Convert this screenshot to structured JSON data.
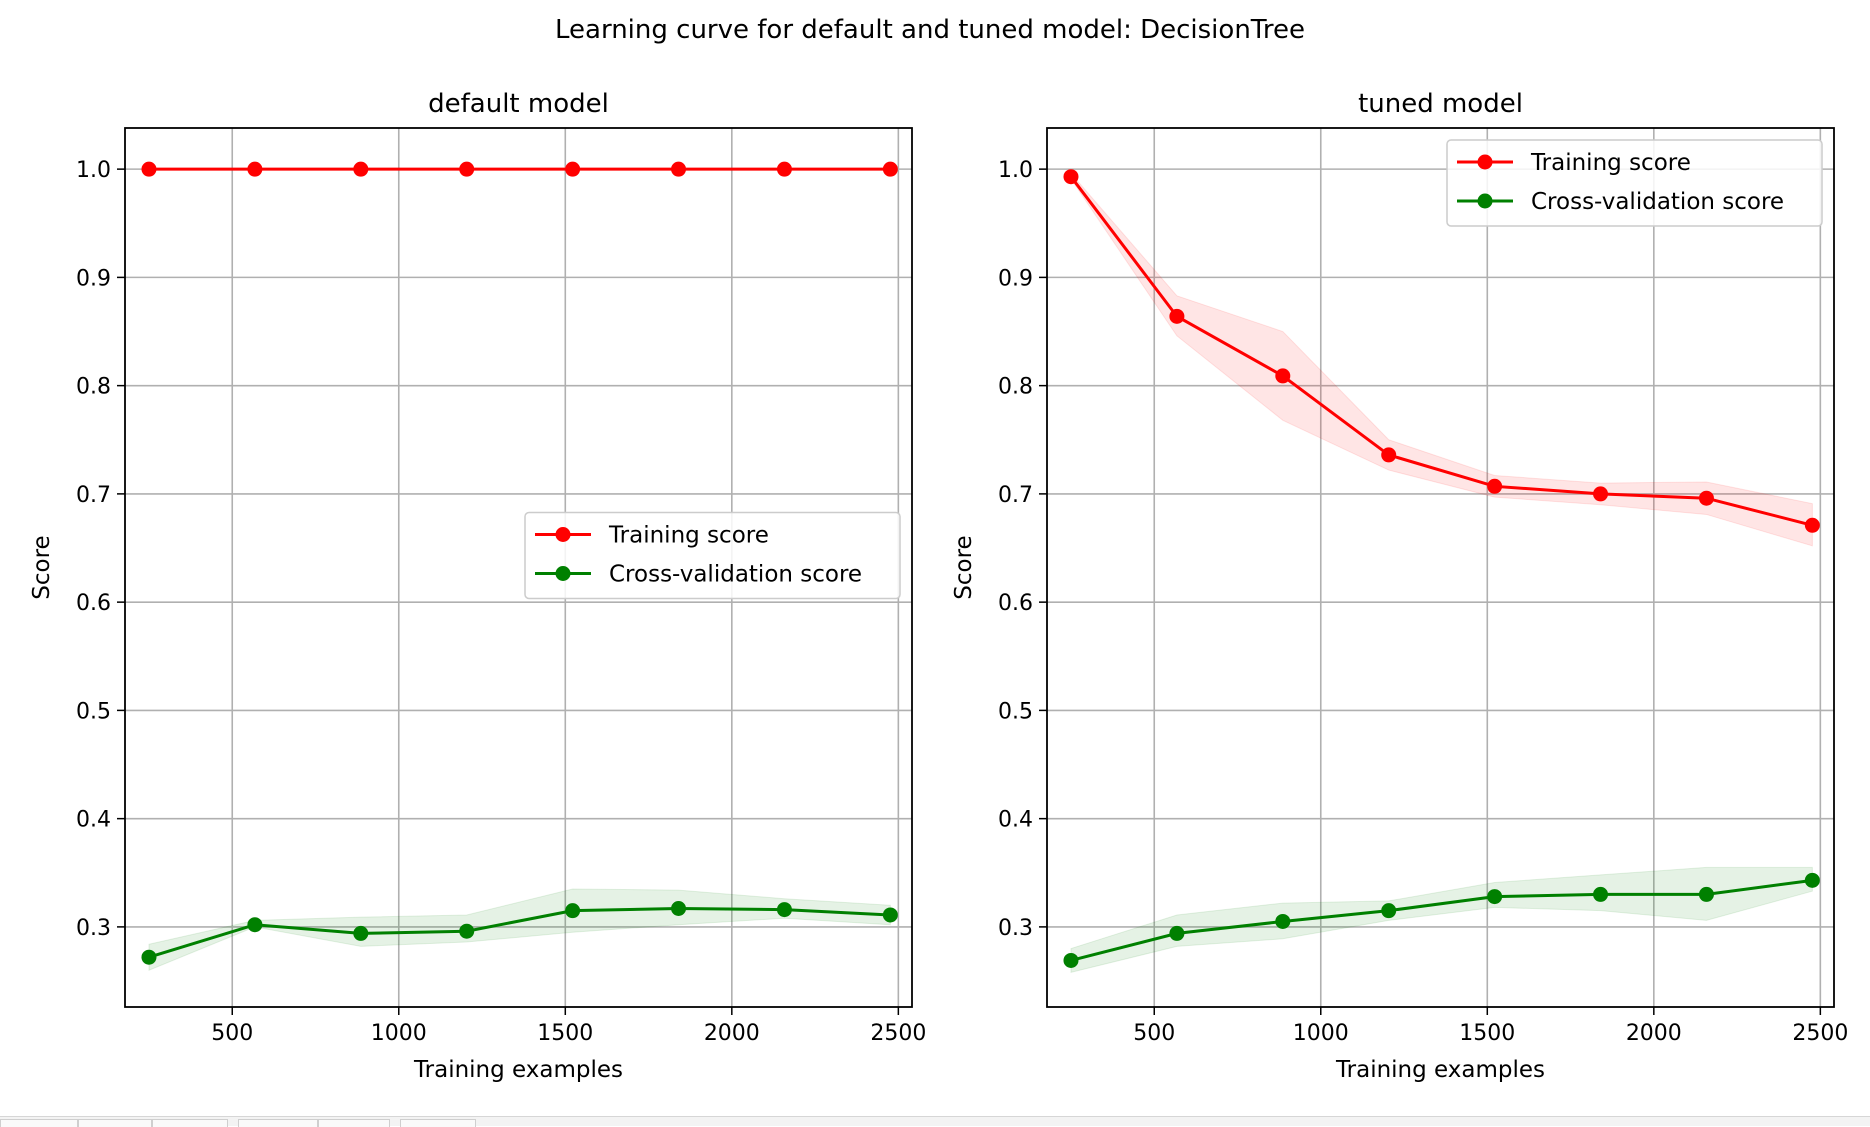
{
  "figure": {
    "suptitle": "Learning curve for default and tuned model: DecisionTree",
    "training_color": "#ff0000",
    "cv_color": "#008000",
    "grid_color": "#b0b0b0"
  },
  "chart_data": [
    {
      "type": "line",
      "title": "default model",
      "xlabel": "Training examples",
      "ylabel": "Score",
      "xlim": [
        178,
        2541
      ],
      "ylim": [
        0.226,
        1.038
      ],
      "xticks": [
        500,
        1000,
        1500,
        2000,
        2500
      ],
      "xtick_labels": [
        "500",
        "1000",
        "1500",
        "2000",
        "2500"
      ],
      "yticks": [
        0.3,
        0.4,
        0.5,
        0.6,
        0.7,
        0.8,
        0.9,
        1.0
      ],
      "ytick_labels": [
        "0.3",
        "0.4",
        "0.5",
        "0.6",
        "0.7",
        "0.8",
        "0.9",
        "1.0"
      ],
      "grid": true,
      "legend": "center-right",
      "x": [
        250,
        568,
        886,
        1204,
        1522,
        1840,
        2158,
        2476
      ],
      "series": [
        {
          "name": "Training score",
          "color": "#ff0000",
          "values": [
            1.0,
            1.0,
            1.0,
            1.0,
            1.0,
            1.0,
            1.0,
            1.0
          ],
          "lower": [
            1.0,
            1.0,
            1.0,
            1.0,
            1.0,
            1.0,
            1.0,
            1.0
          ],
          "upper": [
            1.0,
            1.0,
            1.0,
            1.0,
            1.0,
            1.0,
            1.0,
            1.0
          ]
        },
        {
          "name": "Cross-validation score",
          "color": "#008000",
          "values": [
            0.272,
            0.302,
            0.294,
            0.296,
            0.315,
            0.317,
            0.316,
            0.311
          ],
          "lower": [
            0.26,
            0.3,
            0.282,
            0.286,
            0.295,
            0.302,
            0.308,
            0.302
          ],
          "upper": [
            0.284,
            0.306,
            0.309,
            0.311,
            0.335,
            0.334,
            0.326,
            0.32
          ]
        }
      ]
    },
    {
      "type": "line",
      "title": "tuned model",
      "xlabel": "Training examples",
      "ylabel": "Score",
      "xlim": [
        178,
        2541
      ],
      "ylim": [
        0.226,
        1.038
      ],
      "xticks": [
        500,
        1000,
        1500,
        2000,
        2500
      ],
      "xtick_labels": [
        "500",
        "1000",
        "1500",
        "2000",
        "2500"
      ],
      "yticks": [
        0.3,
        0.4,
        0.5,
        0.6,
        0.7,
        0.8,
        0.9,
        1.0
      ],
      "ytick_labels": [
        "0.3",
        "0.4",
        "0.5",
        "0.6",
        "0.7",
        "0.8",
        "0.9",
        "1.0"
      ],
      "grid": true,
      "legend": "top-right",
      "x": [
        250,
        568,
        886,
        1204,
        1522,
        1840,
        2158,
        2476
      ],
      "series": [
        {
          "name": "Training score",
          "color": "#ff0000",
          "values": [
            0.993,
            0.864,
            0.809,
            0.736,
            0.707,
            0.7,
            0.696,
            0.671
          ],
          "lower": [
            0.991,
            0.846,
            0.768,
            0.722,
            0.697,
            0.69,
            0.681,
            0.652
          ],
          "upper": [
            0.996,
            0.883,
            0.85,
            0.75,
            0.717,
            0.71,
            0.711,
            0.691
          ]
        },
        {
          "name": "Cross-validation score",
          "color": "#008000",
          "values": [
            0.269,
            0.294,
            0.305,
            0.315,
            0.328,
            0.33,
            0.33,
            0.343
          ],
          "lower": [
            0.258,
            0.282,
            0.289,
            0.306,
            0.318,
            0.315,
            0.306,
            0.333
          ],
          "upper": [
            0.28,
            0.311,
            0.322,
            0.324,
            0.341,
            0.348,
            0.355,
            0.355
          ]
        }
      ]
    }
  ]
}
